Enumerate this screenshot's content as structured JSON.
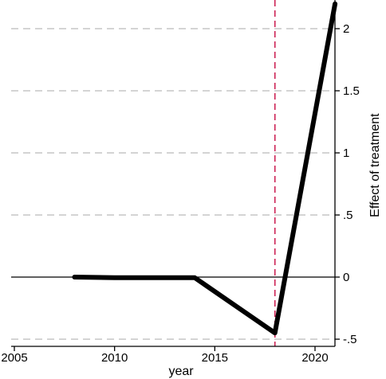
{
  "chart_data": {
    "type": "line",
    "title": "",
    "xlabel": "year",
    "ylabel": "Effect of treatment",
    "xlim": [
      2005,
      2021
    ],
    "ylim": [
      -0.5,
      2.2
    ],
    "x_ticks": [
      2005,
      2010,
      2015,
      2020
    ],
    "y_ticks": [
      -0.5,
      0,
      0.5,
      1,
      1.5,
      2
    ],
    "x_tick_labels": [
      "2005",
      "2010",
      "2015",
      "2020"
    ],
    "y_tick_labels": [
      "-.5",
      "0",
      ".5",
      "1",
      "1.5",
      "2"
    ],
    "y_axis_side": "right",
    "grid": "horizontal dashed",
    "zero_line": 0,
    "vertical_reference": {
      "x": 2018,
      "style": "dashed",
      "color": "#cc2255"
    },
    "series": [
      {
        "x": [
          2008,
          2010,
          2011,
          2012,
          2013,
          2014,
          2018,
          2021
        ],
        "y": [
          0.0,
          -0.005,
          -0.005,
          -0.005,
          -0.005,
          -0.005,
          -0.45,
          2.2
        ],
        "color": "#000000"
      }
    ]
  },
  "colors": {
    "line": "#000000",
    "grid": "#bbbbbb",
    "reference_line": "#cc2255"
  }
}
